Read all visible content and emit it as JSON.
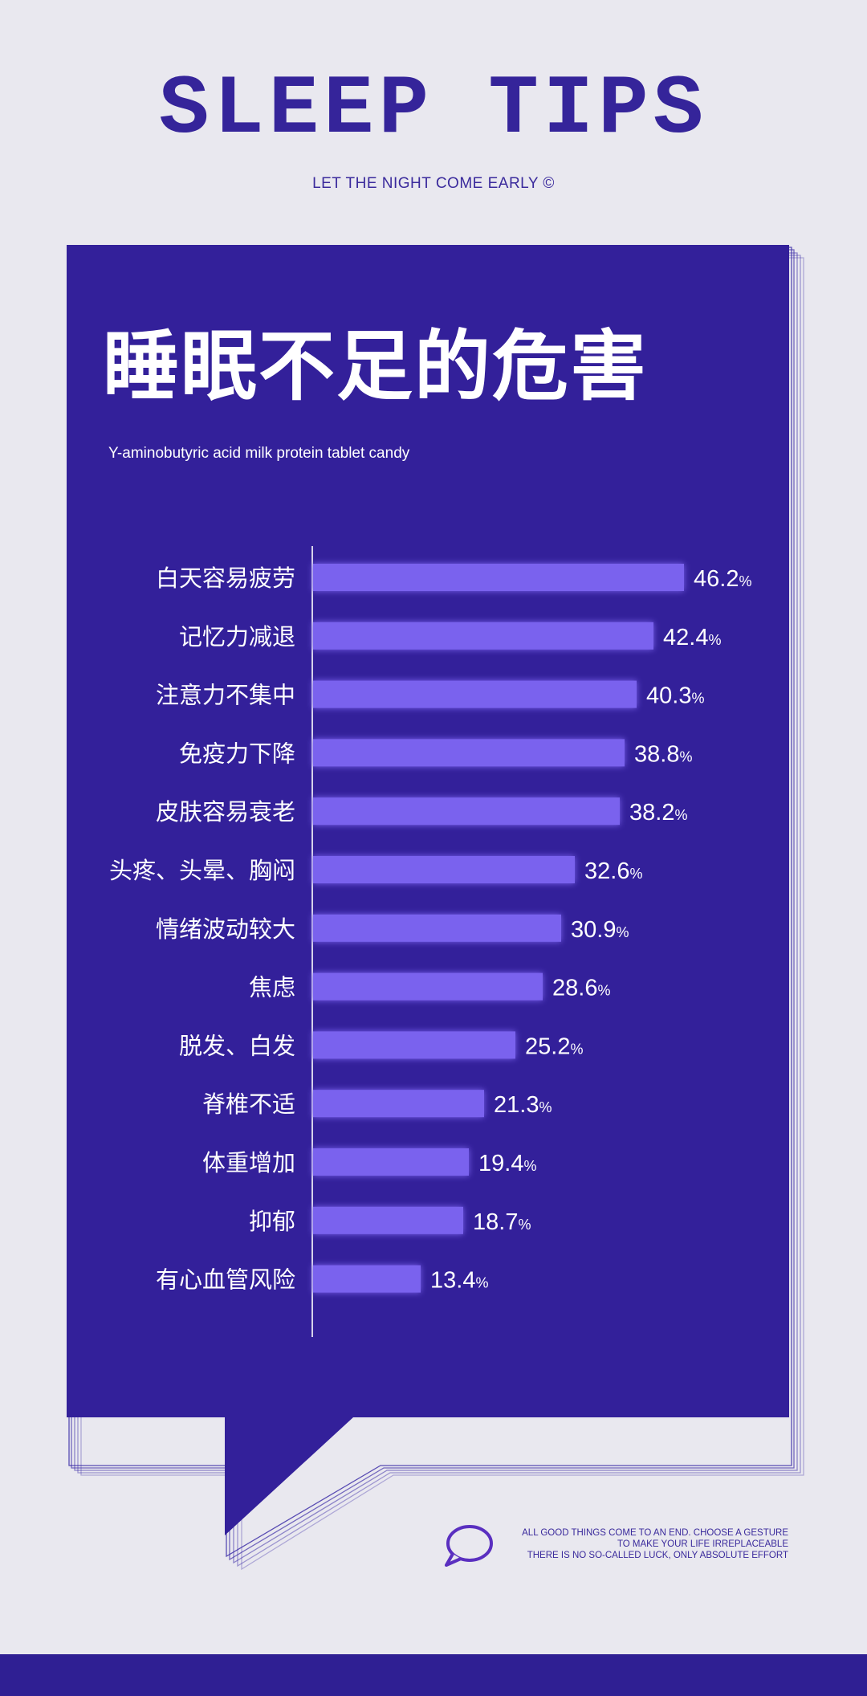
{
  "header": {
    "logo": "SLEEP TIPS",
    "tagline": "LET THE NIGHT COME EARLY ©"
  },
  "panel": {
    "title": "睡眠不足的危害",
    "subtitle": "Y-aminobutyric acid milk protein tablet candy"
  },
  "colors": {
    "background": "#e9e8ef",
    "panel": "#33209a",
    "bar": "#7a62ee",
    "logo": "#35249a"
  },
  "chart_data": {
    "type": "bar",
    "orientation": "horizontal",
    "categories": [
      "白天容易疲劳",
      "记忆力减退",
      "注意力不集中",
      "免疫力下降",
      "皮肤容易衰老",
      "头疼、头晕、胸闷",
      "情绪波动较大",
      "焦虑",
      "脱发、白发",
      "脊椎不适",
      "体重增加",
      "抑郁",
      "有心血管风险"
    ],
    "values": [
      46.2,
      42.4,
      40.3,
      38.8,
      38.2,
      32.6,
      30.9,
      28.6,
      25.2,
      21.3,
      19.4,
      18.7,
      13.4
    ],
    "unit": "%",
    "title": "睡眠不足的危害",
    "xlim": [
      0,
      46.2
    ],
    "grid": false
  },
  "footer": {
    "icon": "speech-bubble-icon",
    "lines": [
      "ALL GOOD THINGS COME TO AN END. CHOOSE A GESTURE",
      "TO MAKE YOUR LIFE IRREPLACEABLE",
      "THERE IS NO SO-CALLED LUCK, ONLY ABSOLUTE EFFORT"
    ]
  }
}
